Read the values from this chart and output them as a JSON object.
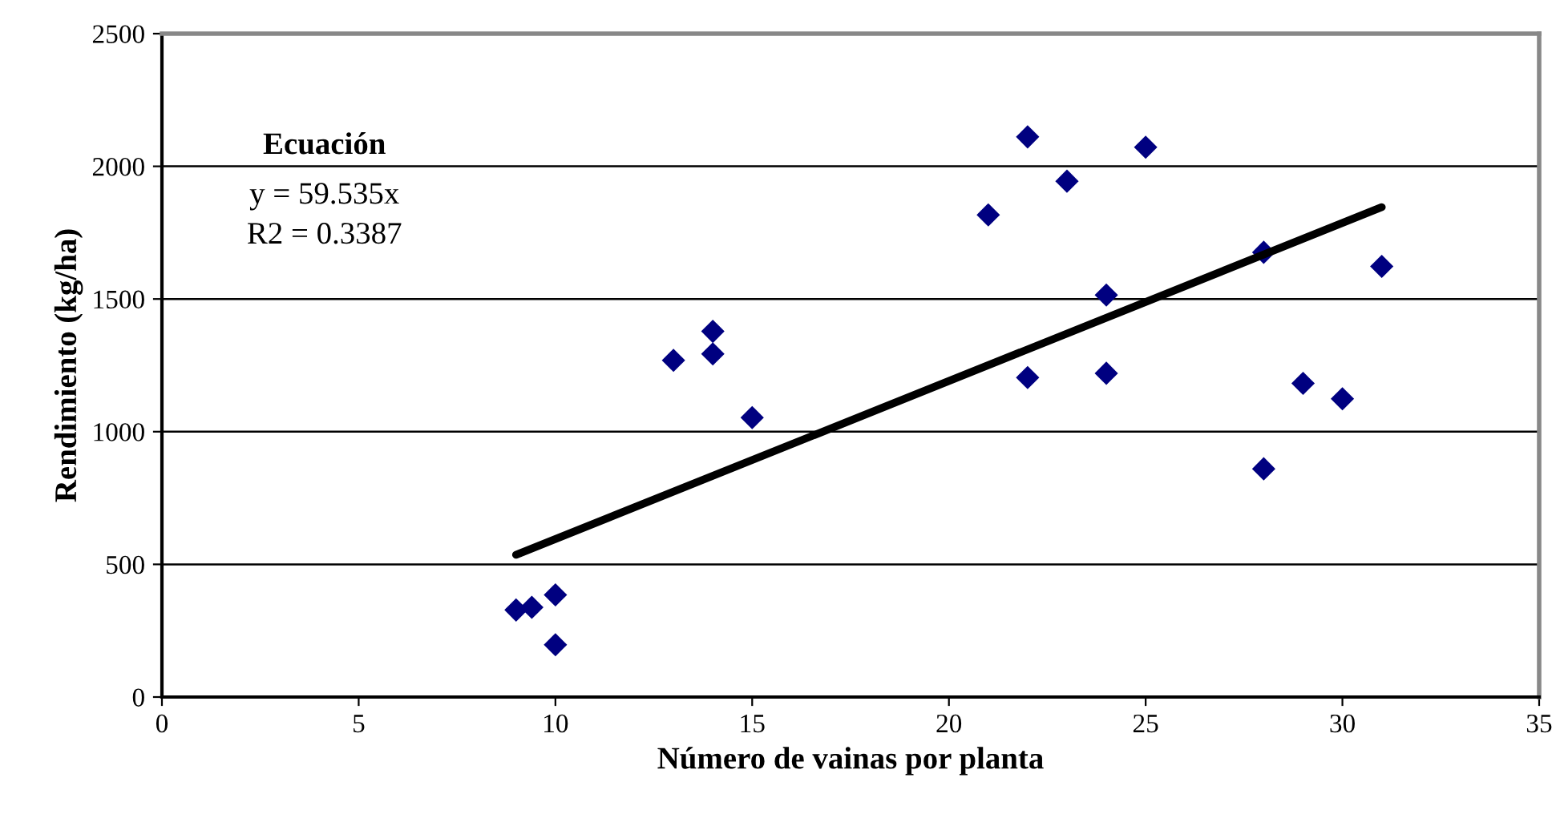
{
  "chart_data": {
    "type": "scatter",
    "xlabel": "Número de vainas por planta",
    "ylabel": "Rendimiento (kg/ha)",
    "annotations": [
      "Ecuación",
      "y = 59.535x",
      "R2 = 0.3387"
    ],
    "series": [
      {
        "color": "#000080",
        "marker": "diamond",
        "x": [
          9,
          9.4,
          10,
          10,
          13,
          14,
          14,
          15,
          21,
          22,
          22,
          23,
          24,
          24,
          25,
          28,
          28,
          29,
          30,
          31
        ],
        "values": [
          328,
          338,
          385,
          197,
          1269,
          1378,
          1293,
          1053,
          1817,
          2111,
          1204,
          1944,
          1515,
          1220,
          2072,
          1676,
          860,
          1182,
          1124,
          1623
        ]
      },
      {
        "type": "line",
        "color": "#000000",
        "line_style": "solid",
        "x": [
          9,
          31
        ],
        "values": [
          536,
          1846
        ]
      }
    ],
    "xlim": [
      0,
      35
    ],
    "xticks": [
      0,
      5,
      10,
      15,
      20,
      25,
      30,
      35
    ],
    "ylim": [
      0,
      2500
    ],
    "yticks": [
      0,
      500,
      1000,
      1500,
      2000,
      2500
    ],
    "grid": "y",
    "legend": false
  }
}
